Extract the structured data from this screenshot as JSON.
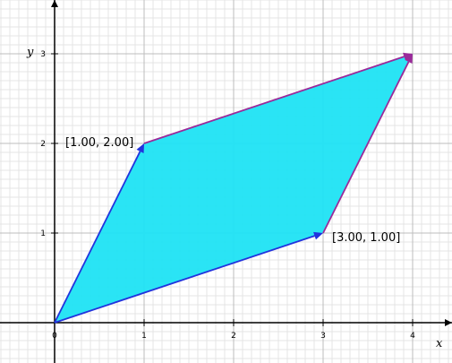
{
  "chart_data": {
    "type": "vector-parallelogram",
    "x_range": [
      -0.6,
      4.42
    ],
    "y_range": [
      -0.43,
      3.45
    ],
    "x_ticks": [
      "0",
      "1",
      "2",
      "3",
      "4"
    ],
    "y_ticks": [
      "1",
      "2",
      "3"
    ],
    "xlabel": "x",
    "ylabel": "y",
    "grid": true,
    "parallelogram": {
      "vertices": [
        [
          0,
          0
        ],
        [
          1,
          2
        ],
        [
          4,
          3
        ],
        [
          3,
          1
        ]
      ],
      "fill_color": "#1fe3f4"
    },
    "vectors": [
      {
        "from": [
          0,
          0
        ],
        "to": [
          1,
          2
        ],
        "color": "#2233dd",
        "label": "[1.00, 2.00]"
      },
      {
        "from": [
          0,
          0
        ],
        "to": [
          3,
          1
        ],
        "color": "#2233dd",
        "label": "[3.00, 1.00]"
      },
      {
        "from": [
          1,
          2
        ],
        "to": [
          4,
          3
        ],
        "color": "#9a2a9a",
        "label": ""
      },
      {
        "from": [
          3,
          1
        ],
        "to": [
          4,
          3
        ],
        "color": "#9a2a9a",
        "label": ""
      }
    ]
  }
}
